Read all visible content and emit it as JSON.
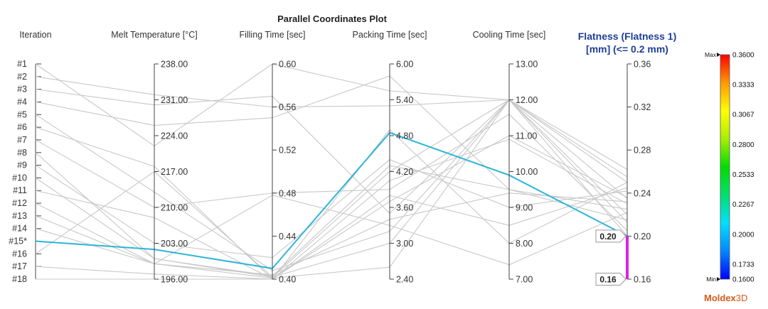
{
  "chart_data": {
    "type": "parallel_coordinates",
    "title": "Parallel Coordinates Plot",
    "iteration_axis": {
      "label": "Iteration",
      "ticks": [
        "#1",
        "#2",
        "#3",
        "#4",
        "#5",
        "#6",
        "#7",
        "#8",
        "#9",
        "#10",
        "#11",
        "#12",
        "#13",
        "#14",
        "#15*",
        "#16",
        "#17",
        "#18"
      ]
    },
    "axes": [
      {
        "key": "melt",
        "label": "Melt Temperature [°C]",
        "min": 196,
        "max": 238,
        "ticks": [
          "238.00",
          "231.00",
          "224.00",
          "217.00",
          "210.00",
          "203.00",
          "196.00"
        ]
      },
      {
        "key": "fill",
        "label": "Filling Time [sec]",
        "min": 0.4,
        "max": 0.6,
        "ticks": [
          "0.60",
          "0.56",
          "0.52",
          "0.48",
          "0.44",
          "0.40"
        ]
      },
      {
        "key": "pack",
        "label": "Packing Time [sec]",
        "min": 2.4,
        "max": 6.0,
        "ticks": [
          "6.00",
          "5.40",
          "4.80",
          "4.20",
          "3.60",
          "3.00",
          "2.40"
        ]
      },
      {
        "key": "cool",
        "label": "Cooling Time [sec]",
        "min": 7.0,
        "max": 13.0,
        "ticks": [
          "13.00",
          "12.00",
          "11.00",
          "10.00",
          "9.00",
          "8.00",
          "7.00"
        ]
      },
      {
        "key": "flat",
        "label_line1": "Flatness (Flatness 1)",
        "label_line2": "[mm] (<= 0.2 mm)",
        "min": 0.16,
        "max": 0.36,
        "ticks": [
          "0.36",
          "0.32",
          "0.28",
          "0.24",
          "0.20",
          "0.16"
        ]
      }
    ],
    "highlight_run": "#15*",
    "highlight_color": "#2bb5d8",
    "background_line_color": "#c8c8c8",
    "runs": [
      {
        "name": "#1",
        "melt": 222,
        "fill": 0.6,
        "pack": 5.55,
        "cool": 12.0,
        "flat": 0.235
      },
      {
        "name": "#2",
        "melt": 232,
        "fill": 0.56,
        "pack": 5.3,
        "cool": 12.0,
        "flat": 0.22
      },
      {
        "name": "#3",
        "melt": 230,
        "fill": 0.57,
        "pack": 3.5,
        "cool": 12.0,
        "flat": 0.255
      },
      {
        "name": "#4",
        "melt": 226,
        "fill": 0.55,
        "pack": 5.8,
        "cool": 9.5,
        "flat": 0.215
      },
      {
        "name": "#5",
        "melt": 213,
        "fill": 0.408,
        "pack": 3.2,
        "cool": 12.0,
        "flat": 0.25
      },
      {
        "name": "#6",
        "melt": 218,
        "fill": 0.4,
        "pack": 4.05,
        "cool": 10.9,
        "flat": 0.23
      },
      {
        "name": "#7",
        "melt": 210,
        "fill": 0.48,
        "pack": 3.9,
        "cool": 11.6,
        "flat": 0.205
      },
      {
        "name": "#8",
        "melt": 200,
        "fill": 0.402,
        "pack": 3.0,
        "cool": 12.0,
        "flat": 0.262
      },
      {
        "name": "#9",
        "melt": 203,
        "fill": 0.42,
        "pack": 4.4,
        "cool": 9.0,
        "flat": 0.242
      },
      {
        "name": "#10",
        "melt": 200,
        "fill": 0.403,
        "pack": 4.3,
        "cool": 9.5,
        "flat": 0.225
      },
      {
        "name": "#11",
        "melt": 208,
        "fill": 0.4,
        "pack": 3.8,
        "cool": 8.5,
        "flat": 0.245
      },
      {
        "name": "#12",
        "melt": 199,
        "fill": 0.401,
        "pack": 2.6,
        "cool": 12.0,
        "flat": 0.2
      },
      {
        "name": "#13",
        "melt": 199,
        "fill": 0.478,
        "pack": 3.3,
        "cool": 7.4,
        "flat": 0.222
      },
      {
        "name": "#14",
        "melt": 199,
        "fill": 0.404,
        "pack": 3.4,
        "cool": 9.4,
        "flat": 0.232
      },
      {
        "name": "#15*",
        "melt": 201.8,
        "fill": 0.41,
        "pack": 4.85,
        "cool": 9.9,
        "flat": 0.2
      },
      {
        "name": "#16",
        "melt": 217,
        "fill": 0.402,
        "pack": 4.2,
        "cool": 12.0,
        "flat": 0.213
      },
      {
        "name": "#17",
        "melt": 197,
        "fill": 0.4,
        "pack": 3.7,
        "cool": 11.0,
        "flat": 0.236
      },
      {
        "name": "#18",
        "melt": 196,
        "fill": 0.4,
        "pack": 4.9,
        "cool": 8.0,
        "flat": 0.25
      }
    ],
    "flatness_callouts": [
      {
        "text": "0.20",
        "value": 0.2
      },
      {
        "text": "0.16",
        "value": 0.16
      }
    ],
    "flatness_range_bar": {
      "min": 0.16,
      "max": 0.2,
      "color": "#dd22dd"
    },
    "colorbar": {
      "max_label": "Max",
      "min_label": "Min",
      "ticks": [
        "0.3600",
        "0.3333",
        "0.3067",
        "0.2800",
        "0.2533",
        "0.2267",
        "0.2000",
        "0.1733",
        "0.1600"
      ],
      "values": [
        0.36,
        0.3333,
        0.3067,
        0.28,
        0.2533,
        0.2267,
        0.2,
        0.1733,
        0.16
      ],
      "min": 0.16,
      "max": 0.36,
      "colors": [
        "#0000ff",
        "#0088ff",
        "#00e0ff",
        "#00e070",
        "#00dd00",
        "#aaee00",
        "#ffff00",
        "#ff9900",
        "#ff0000"
      ]
    },
    "brand": {
      "text_main": "Moldex",
      "text_accent": "3D",
      "color": "#d85a1a"
    }
  }
}
